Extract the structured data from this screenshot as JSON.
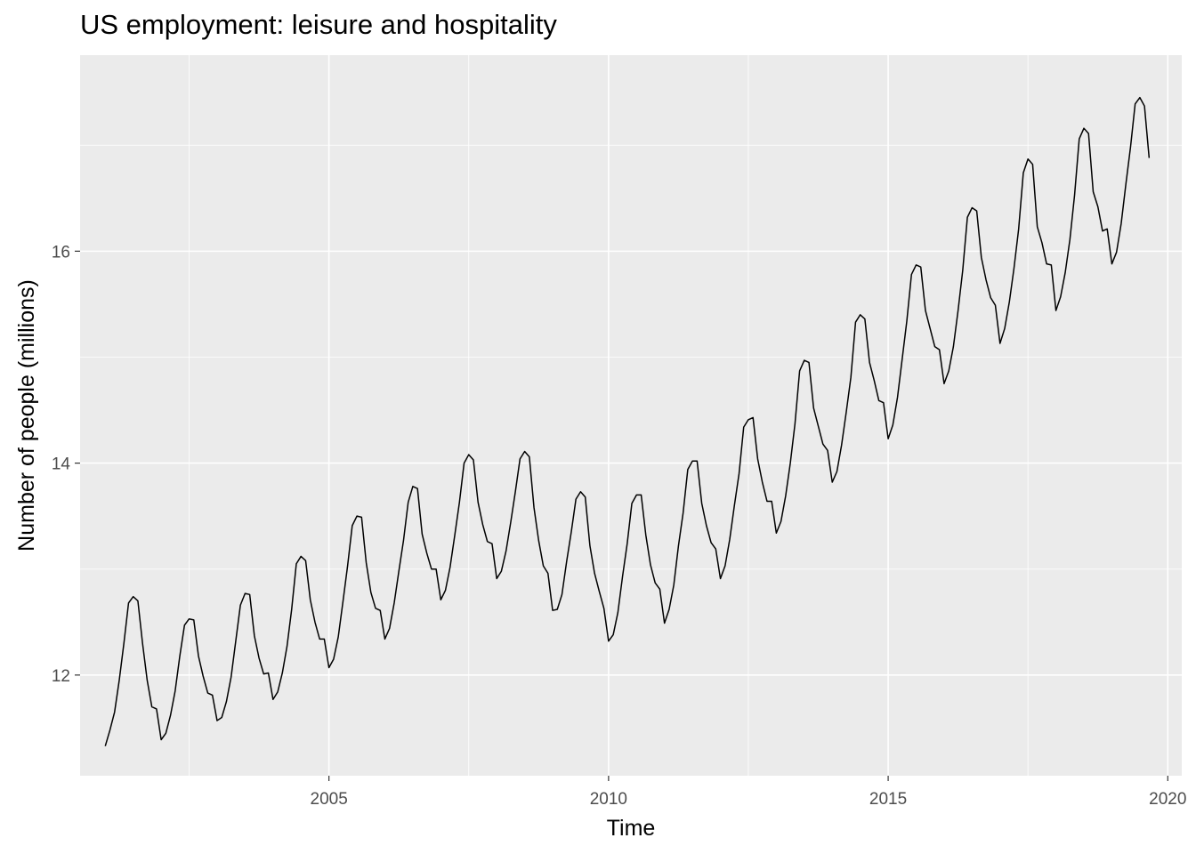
{
  "chart_data": {
    "type": "line",
    "title": "US employment: leisure and hospitality",
    "xlabel": "Time",
    "ylabel": "Number of people (millions)",
    "x_ticks": [
      2005,
      2010,
      2015,
      2020
    ],
    "y_ticks": [
      12,
      14,
      16
    ],
    "xlim": [
      2000.55,
      2020.25
    ],
    "ylim": [
      11.05,
      17.85
    ],
    "grid": true,
    "legend": "none",
    "colors": {
      "panel": "#ebebeb",
      "grid": "#ffffff",
      "line": "#000000"
    },
    "series": [
      {
        "start": 2001.0,
        "frequency": 12,
        "values": [
          11.33,
          11.48,
          11.65,
          11.95,
          12.3,
          12.68,
          12.74,
          12.7,
          12.3,
          11.95,
          11.7,
          11.68,
          11.39,
          11.45,
          11.62,
          11.85,
          12.18,
          12.47,
          12.53,
          12.52,
          12.18,
          11.99,
          11.83,
          11.81,
          11.57,
          11.6,
          11.75,
          11.98,
          12.32,
          12.66,
          12.77,
          12.76,
          12.37,
          12.16,
          12.01,
          12.02,
          11.77,
          11.84,
          12.02,
          12.27,
          12.62,
          13.05,
          13.12,
          13.08,
          12.71,
          12.5,
          12.34,
          12.34,
          12.07,
          12.15,
          12.36,
          12.69,
          13.03,
          13.41,
          13.5,
          13.49,
          13.06,
          12.78,
          12.63,
          12.61,
          12.34,
          12.44,
          12.68,
          12.98,
          13.27,
          13.63,
          13.78,
          13.76,
          13.33,
          13.15,
          13.0,
          13.0,
          12.71,
          12.8,
          13.02,
          13.32,
          13.63,
          14.0,
          14.08,
          14.03,
          13.63,
          13.42,
          13.26,
          13.24,
          12.91,
          12.98,
          13.17,
          13.44,
          13.73,
          14.04,
          14.11,
          14.06,
          13.58,
          13.27,
          13.03,
          12.96,
          12.61,
          12.62,
          12.76,
          13.07,
          13.35,
          13.66,
          13.73,
          13.68,
          13.22,
          12.96,
          12.79,
          12.63,
          12.32,
          12.38,
          12.59,
          12.93,
          13.24,
          13.62,
          13.7,
          13.7,
          13.32,
          13.04,
          12.87,
          12.81,
          12.49,
          12.62,
          12.85,
          13.22,
          13.53,
          13.94,
          14.02,
          14.02,
          13.62,
          13.41,
          13.25,
          13.19,
          12.91,
          13.03,
          13.28,
          13.6,
          13.9,
          14.34,
          14.41,
          14.43,
          14.04,
          13.82,
          13.64,
          13.64,
          13.34,
          13.45,
          13.69,
          14.0,
          14.37,
          14.87,
          14.97,
          14.95,
          14.52,
          14.35,
          14.18,
          14.12,
          13.82,
          13.92,
          14.17,
          14.48,
          14.81,
          15.33,
          15.4,
          15.36,
          14.95,
          14.78,
          14.59,
          14.57,
          14.23,
          14.36,
          14.62,
          14.98,
          15.34,
          15.78,
          15.87,
          15.85,
          15.44,
          15.27,
          15.1,
          15.07,
          14.75,
          14.87,
          15.1,
          15.44,
          15.82,
          16.32,
          16.41,
          16.38,
          15.94,
          15.73,
          15.56,
          15.49,
          15.13,
          15.27,
          15.52,
          15.84,
          16.21,
          16.74,
          16.87,
          16.82,
          16.23,
          16.08,
          15.88,
          15.87,
          15.44,
          15.57,
          15.8,
          16.11,
          16.53,
          17.06,
          17.16,
          17.11,
          16.56,
          16.42,
          16.19,
          16.21,
          15.88,
          15.99,
          16.26,
          16.63,
          16.98,
          17.39,
          17.45,
          17.37,
          16.88
        ]
      }
    ]
  }
}
